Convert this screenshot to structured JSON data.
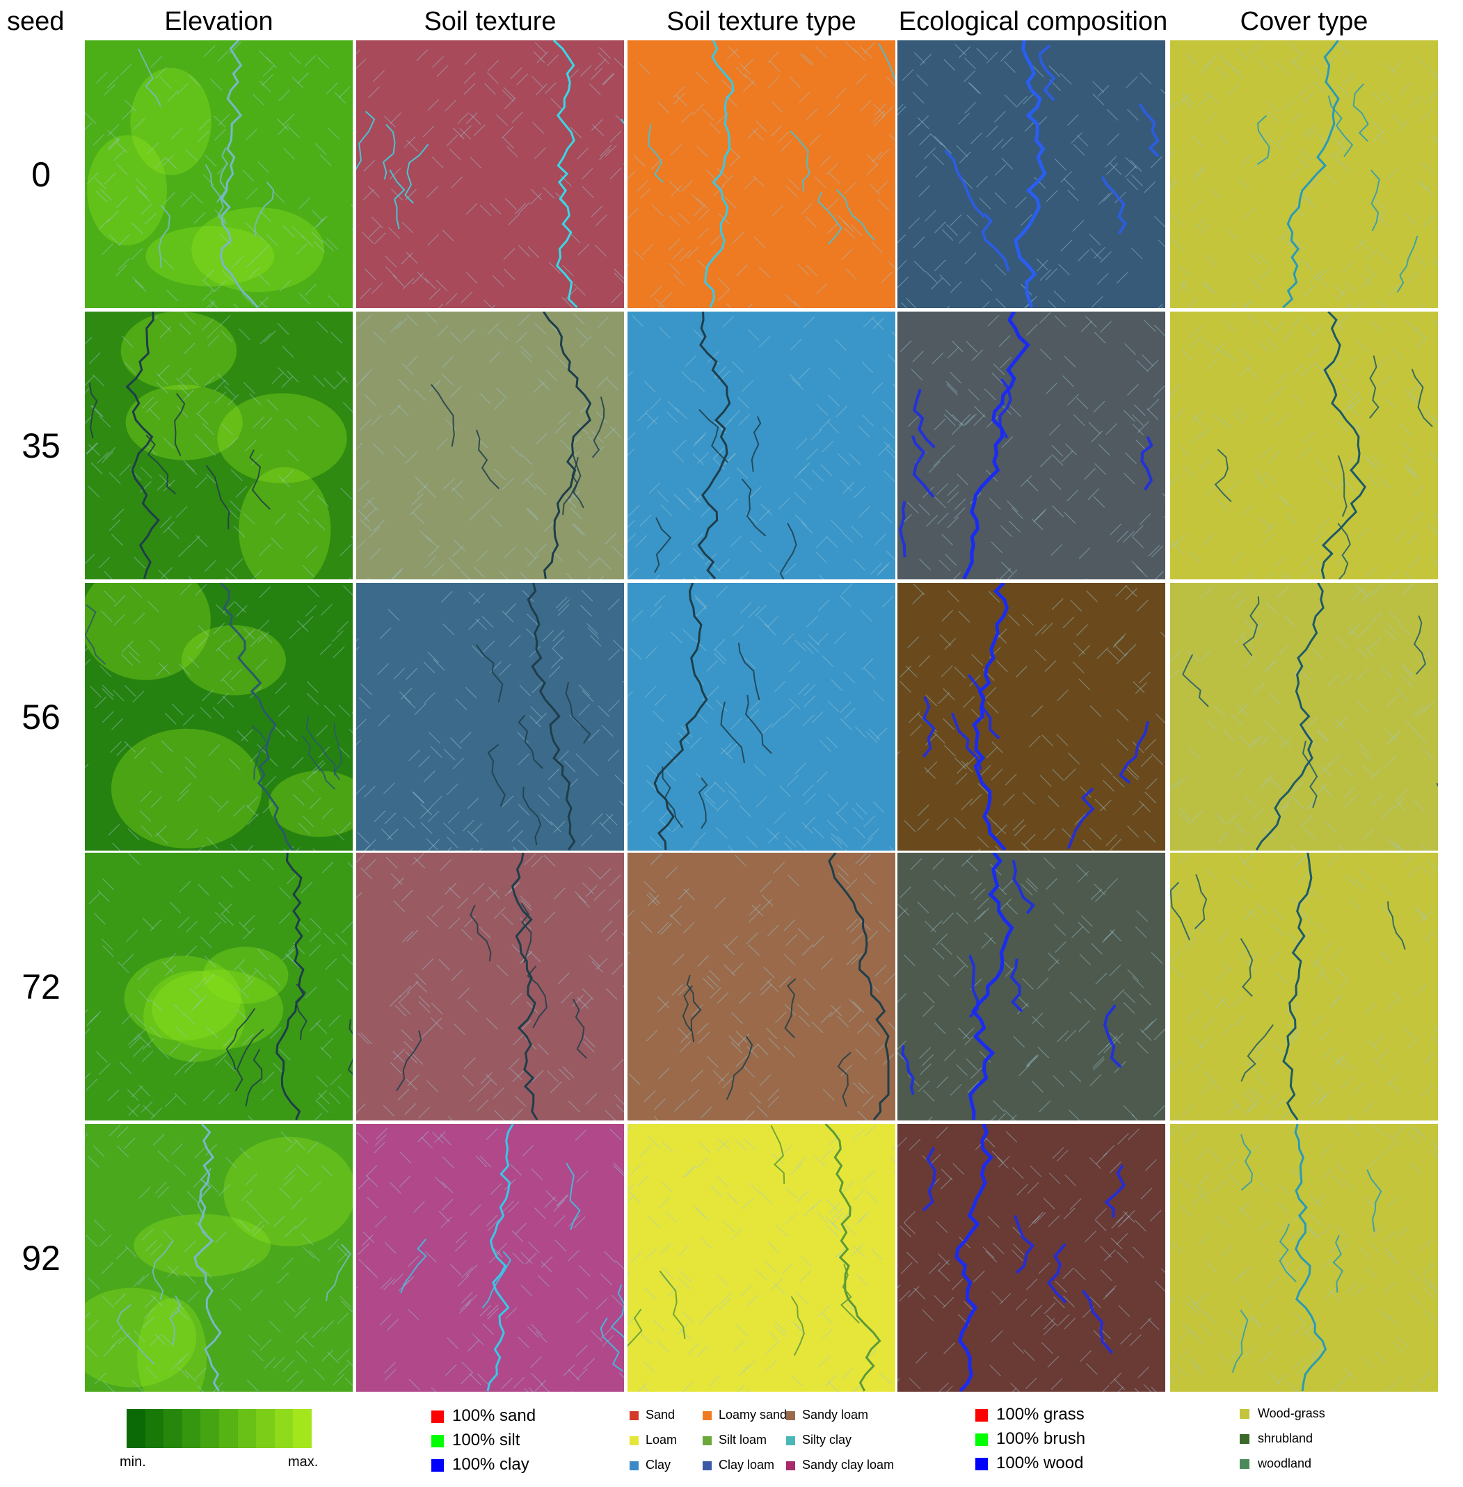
{
  "headers": {
    "seed": "seed",
    "columns": [
      "Elevation",
      "Soil texture",
      "Soil texture type",
      "Ecological composition",
      "Cover type"
    ]
  },
  "rows": [
    {
      "seed": "0",
      "backgrounds": [
        "#4caf18",
        "#a84a5a",
        "#ee7a22",
        "#365a78",
        "#c4c53a"
      ],
      "river_colors": [
        "#78b8c8",
        "#38d8e8",
        "#38c8e8",
        "#2a5ef0",
        "#2a9ab8"
      ]
    },
    {
      "seed": "35",
      "backgrounds": [
        "#2f8a12",
        "#8e9a6a",
        "#3a96c8",
        "#505a60",
        "#c4c53a"
      ],
      "river_colors": [
        "#1e3e4a",
        "#1e3e4a",
        "#1e3e4a",
        "#1a2cf0",
        "#1e5a6a"
      ]
    },
    {
      "seed": "56",
      "backgrounds": [
        "#268210",
        "#3c6a8a",
        "#3a96c8",
        "#6a4a1c",
        "#bcc042"
      ],
      "river_colors": [
        "#2a5a6a",
        "#1e3e4a",
        "#1e3e4a",
        "#1a2cf0",
        "#1e5a6a"
      ]
    },
    {
      "seed": "72",
      "backgrounds": [
        "#3a9a16",
        "#9a5a62",
        "#9a6a4a",
        "#4e5a4e",
        "#c4c53a"
      ],
      "river_colors": [
        "#1e3e4a",
        "#1e3e4a",
        "#1e3e4a",
        "#1a2cf0",
        "#1e5a6a"
      ]
    },
    {
      "seed": "92",
      "backgrounds": [
        "#4aa81c",
        "#b0488a",
        "#e6e63a",
        "#6a3a34",
        "#c4c53a"
      ],
      "river_colors": [
        "#78b8c8",
        "#38c8e8",
        "#5a9a3a",
        "#1a2cf0",
        "#2a9ab8"
      ]
    }
  ],
  "legends": {
    "elevation": {
      "min_label": "min.",
      "max_label": "max.",
      "colors": [
        "#0b6a05",
        "#187808",
        "#26870c",
        "#35960f",
        "#45a412",
        "#57b214",
        "#69c016",
        "#7ccd18",
        "#8fda1a",
        "#a3e61c"
      ]
    },
    "soil_texture": [
      {
        "label": "100% sand",
        "color": "#ff0000"
      },
      {
        "label": "100% silt",
        "color": "#00ff00"
      },
      {
        "label": "100% clay",
        "color": "#0000ff"
      }
    ],
    "soil_texture_type": [
      {
        "label": "Sand",
        "color": "#d43a2a"
      },
      {
        "label": "Loamy sand",
        "color": "#f07a20"
      },
      {
        "label": "Sandy loam",
        "color": "#9a6a4a"
      },
      {
        "label": "Loam",
        "color": "#e6e63a"
      },
      {
        "label": "Silt loam",
        "color": "#6aa83a"
      },
      {
        "label": "Silty clay",
        "color": "#4ab8b8"
      },
      {
        "label": "Clay",
        "color": "#3a8ac8"
      },
      {
        "label": "Clay loam",
        "color": "#3a5aa8"
      },
      {
        "label": "Sandy clay loam",
        "color": "#a82a6a"
      }
    ],
    "ecological": [
      {
        "label": "100% grass",
        "color": "#ff0000"
      },
      {
        "label": "100% brush",
        "color": "#00ff00"
      },
      {
        "label": "100% wood",
        "color": "#0000ff"
      }
    ],
    "cover": [
      {
        "label": "Wood-grass",
        "color": "#c4c53a"
      },
      {
        "label": "shrubland",
        "color": "#3a6a2a"
      },
      {
        "label": "woodland",
        "color": "#4a8a5a"
      }
    ]
  }
}
